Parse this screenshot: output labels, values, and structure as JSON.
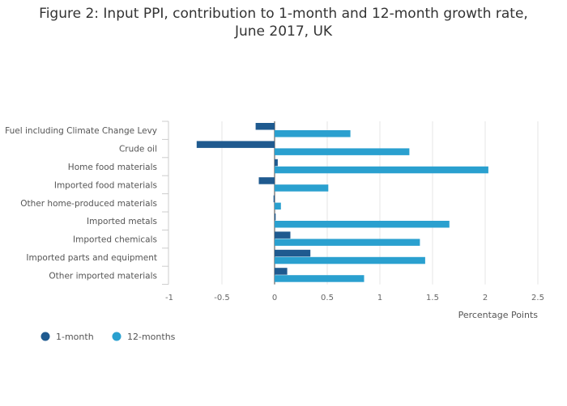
{
  "chart_data": {
    "type": "bar",
    "orientation": "horizontal",
    "title_lines": [
      "Figure 2: Input PPI, contribution to 1-month and 12-month growth rate,",
      "June 2017, UK"
    ],
    "categories": [
      "Fuel including Climate Change Levy",
      "Crude oil",
      "Home food materials",
      "Imported food materials",
      "Other home-produced materials",
      "Imported metals",
      "Imported chemicals",
      "Imported parts and equipment",
      "Other imported materials"
    ],
    "series": [
      {
        "name": "1-month",
        "color": "#1f5a8f",
        "values": [
          -0.18,
          -0.74,
          0.03,
          -0.15,
          -0.01,
          0.01,
          0.15,
          0.34,
          0.12
        ]
      },
      {
        "name": "12-months",
        "color": "#2aa0cf",
        "values": [
          0.72,
          1.28,
          2.03,
          0.51,
          0.06,
          1.66,
          1.38,
          1.43,
          0.85
        ]
      }
    ],
    "xlabel": "Percentage Points",
    "xlim": [
      -1,
      2.5
    ],
    "xticks": [
      -1,
      -0.5,
      0,
      0.5,
      1,
      1.5,
      2,
      2.5
    ],
    "xtick_labels": [
      "-1",
      "-0.5",
      "0",
      "0.5",
      "1",
      "1.5",
      "2",
      "2.5"
    ],
    "grid": true,
    "legend_position": "bottom-left"
  }
}
